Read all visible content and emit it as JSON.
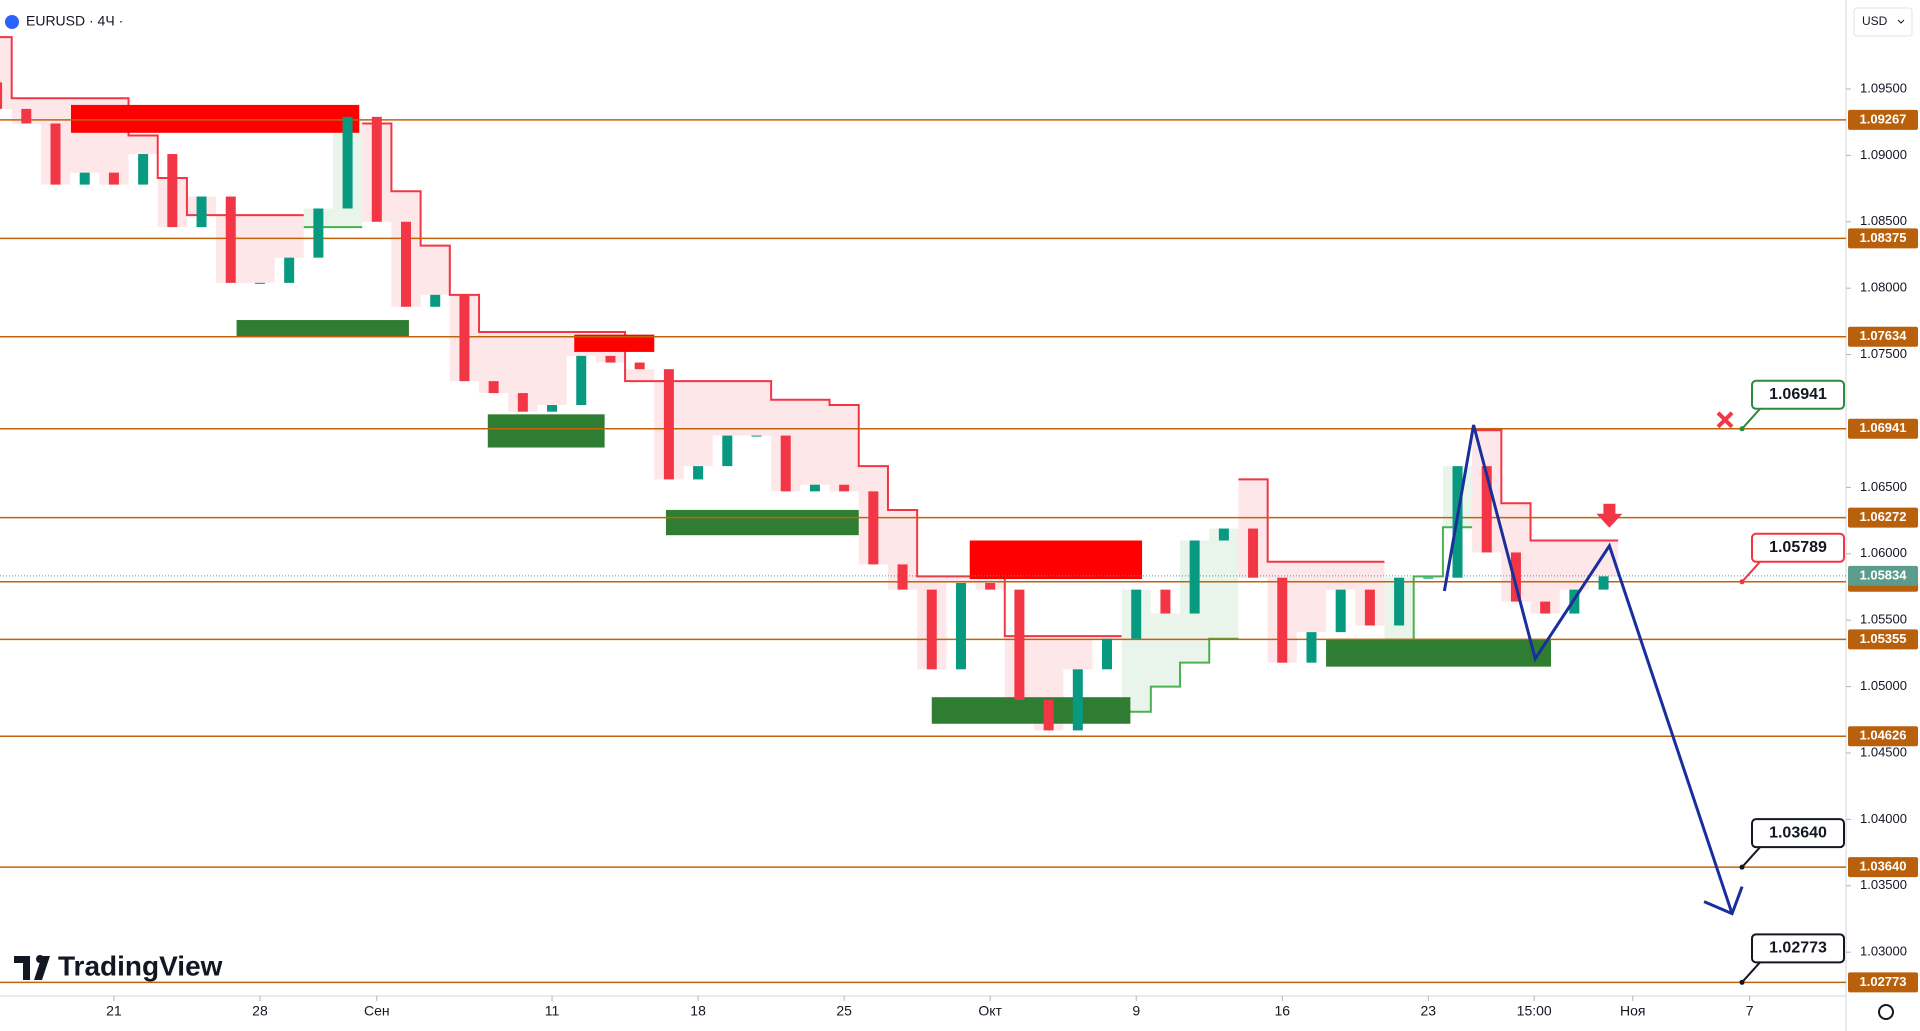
{
  "chart_data": {
    "type": "candlestick",
    "symbol": "EURUSD · 4Ч ·",
    "currency": "USD",
    "brand": "TradingView",
    "up_color": "#089981",
    "down_color": "#f23645",
    "x": [
      -4,
      -3,
      -2,
      -1,
      0,
      1,
      2,
      3,
      4,
      5,
      6,
      7,
      8,
      9,
      10,
      11,
      12,
      13,
      14,
      15,
      16,
      17,
      18,
      19,
      20,
      21,
      22,
      23,
      24,
      25,
      26,
      27,
      28,
      29,
      30,
      31,
      32,
      33,
      34,
      35,
      36,
      37,
      38,
      39,
      40,
      41,
      42,
      43,
      44,
      45,
      46,
      47,
      48,
      49,
      50,
      51
    ],
    "open": [
      1.0955,
      1.0935,
      1.0924,
      1.0878,
      1.0887,
      1.0878,
      1.0901,
      1.0846,
      1.0869,
      1.0804,
      1.0804,
      1.0823,
      1.086,
      1.0929,
      1.085,
      1.0786,
      1.0795,
      1.073,
      1.0721,
      1.0707,
      1.0712,
      1.0749,
      1.0744,
      1.0739,
      1.0656,
      1.0666,
      1.0689,
      1.0689,
      1.0647,
      1.0652,
      1.0647,
      1.0592,
      1.0573,
      1.0513,
      1.0578,
      1.0573,
      1.049,
      1.0467,
      1.0513,
      1.0536,
      1.0573,
      1.0555,
      1.061,
      1.0619,
      1.0582,
      1.0518,
      1.0541,
      1.0573,
      1.0546,
      1.0582,
      1.0582,
      1.0666,
      1.0601,
      1.0564,
      1.0555,
      1.0573
    ],
    "close": [
      1.0935,
      1.0924,
      1.0878,
      1.0887,
      1.0878,
      1.0901,
      1.0846,
      1.0869,
      1.0804,
      1.0804,
      1.0823,
      1.086,
      1.0929,
      1.085,
      1.0786,
      1.0795,
      1.073,
      1.0721,
      1.0707,
      1.0712,
      1.0749,
      1.0744,
      1.0739,
      1.0656,
      1.0666,
      1.0689,
      1.0689,
      1.0647,
      1.0652,
      1.0647,
      1.0592,
      1.0573,
      1.0513,
      1.0578,
      1.0573,
      1.049,
      1.0467,
      1.0513,
      1.0536,
      1.0573,
      1.0555,
      1.061,
      1.0619,
      1.0582,
      1.0518,
      1.0541,
      1.0573,
      1.0546,
      1.0582,
      1.0582,
      1.0666,
      1.0601,
      1.0564,
      1.0555,
      1.0573,
      1.0583
    ],
    "trail_red": [
      1.0989,
      1.0943,
      1.0943,
      1.0943,
      1.0943,
      1.0915,
      1.0883,
      1.0855,
      1.0855,
      1.0855,
      1.0855,
      null,
      null,
      1.0924,
      1.0873,
      1.0832,
      1.0795,
      1.0767,
      1.0767,
      1.0767,
      1.0767,
      1.0767,
      1.073,
      1.073,
      1.073,
      1.073,
      1.073,
      1.0716,
      1.0716,
      1.0712,
      1.0666,
      1.0633,
      1.0583,
      1.0583,
      1.0583,
      1.0538,
      1.0538,
      1.0538,
      1.0538,
      null,
      null,
      null,
      null,
      1.0656,
      1.0594,
      1.0594,
      1.0594,
      1.0594,
      null,
      null,
      null,
      1.0693,
      1.0638,
      1.061,
      1.061,
      1.061
    ],
    "trail_green": [
      null,
      null,
      null,
      null,
      null,
      null,
      null,
      null,
      null,
      null,
      null,
      1.0846,
      1.0846,
      null,
      null,
      null,
      null,
      null,
      null,
      null,
      null,
      null,
      null,
      null,
      null,
      null,
      null,
      null,
      null,
      null,
      null,
      null,
      null,
      null,
      null,
      null,
      null,
      null,
      null,
      1.0481,
      1.05,
      1.0518,
      1.0536,
      null,
      null,
      null,
      null,
      null,
      1.0518,
      1.0583,
      1.062,
      null,
      null,
      null,
      null,
      null
    ],
    "zones": [
      {
        "color": "#ff0000",
        "x": [
          -1.47,
          8.4
        ],
        "y": [
          1.0917,
          1.0938
        ]
      },
      {
        "color": "#2e7d32",
        "x": [
          4.2,
          10.1
        ],
        "y": [
          1.0764,
          1.0776
        ]
      },
      {
        "color": "#ff0000",
        "x": [
          15.76,
          18.5
        ],
        "y": [
          1.0752,
          1.0765
        ]
      },
      {
        "color": "#2e7d32",
        "x": [
          12.8,
          16.8
        ],
        "y": [
          1.068,
          1.0705
        ]
      },
      {
        "color": "#2e7d32",
        "x": [
          18.9,
          25.5
        ],
        "y": [
          1.0614,
          1.0633
        ]
      },
      {
        "color": "#ff0000",
        "x": [
          29.3,
          35.2
        ],
        "y": [
          1.0581,
          1.061
        ]
      },
      {
        "color": "#2e7d32",
        "x": [
          28.0,
          34.8
        ],
        "y": [
          1.0472,
          1.0492
        ]
      },
      {
        "color": "#2e7d32",
        "x": [
          41.5,
          49.2
        ],
        "y": [
          1.0515,
          1.0536
        ]
      }
    ],
    "levels": [
      {
        "value": 1.09267,
        "label": "1.09267"
      },
      {
        "value": 1.08375,
        "label": "1.08375"
      },
      {
        "value": 1.07634,
        "label": "1.07634"
      },
      {
        "value": 1.06941,
        "label": "1.06941"
      },
      {
        "value": 1.06272,
        "label": "1.06272"
      },
      {
        "value": 1.05789,
        "label": "1.05789"
      },
      {
        "value": 1.05355,
        "label": "1.05355"
      },
      {
        "value": 1.04626,
        "label": "1.04626"
      },
      {
        "value": 1.0364,
        "label": "1.03640"
      },
      {
        "value": 1.02773,
        "label": "1.02773"
      }
    ],
    "current_price": {
      "value": 1.05834,
      "label": "1.05834"
    },
    "callouts": [
      {
        "value": 1.06941,
        "label": "1.06941",
        "color": "#2e8b3e"
      },
      {
        "value": 1.05789,
        "label": "1.05789",
        "color": "#f23645"
      },
      {
        "value": 1.0364,
        "label": "1.03640",
        "color": "#131722"
      },
      {
        "value": 1.02773,
        "label": "1.02773",
        "color": "#131722"
      }
    ],
    "projection": {
      "x": [
        45.55,
        46.55,
        48.66,
        51.2,
        55.4
      ],
      "y": [
        1.0572,
        1.0697,
        1.0521,
        1.0606,
        1.0329
      ]
    },
    "xlim": [
      -3.9,
      59.3
    ],
    "ylim": [
      1.0267,
      1.1017
    ],
    "xticks": [
      {
        "value": 0,
        "label": "21"
      },
      {
        "value": 5,
        "label": "28"
      },
      {
        "value": 9,
        "label": "Сен"
      },
      {
        "value": 15,
        "label": "11"
      },
      {
        "value": 20,
        "label": "18"
      },
      {
        "value": 25,
        "label": "25"
      },
      {
        "value": 30,
        "label": "Окт"
      },
      {
        "value": 35,
        "label": "9"
      },
      {
        "value": 40,
        "label": "16"
      },
      {
        "value": 45,
        "label": "23"
      },
      {
        "value": 48.625,
        "label": "15:00"
      },
      {
        "value": 52,
        "label": "Ноя"
      },
      {
        "value": 56,
        "label": "7"
      }
    ],
    "yticks": [
      {
        "value": 1.095,
        "label": "1.09500"
      },
      {
        "value": 1.09,
        "label": "1.09000"
      },
      {
        "value": 1.085,
        "label": "1.08500"
      },
      {
        "value": 1.08,
        "label": "1.08000"
      },
      {
        "value": 1.075,
        "label": "1.07500"
      },
      {
        "value": 1.065,
        "label": "1.06500"
      },
      {
        "value": 1.06,
        "label": "1.06000"
      },
      {
        "value": 1.055,
        "label": "1.05500"
      },
      {
        "value": 1.05,
        "label": "1.05000"
      },
      {
        "value": 1.045,
        "label": "1.04500"
      },
      {
        "value": 1.04,
        "label": "1.04000"
      },
      {
        "value": 1.035,
        "label": "1.03500"
      },
      {
        "value": 1.03,
        "label": "1.03000"
      }
    ]
  }
}
